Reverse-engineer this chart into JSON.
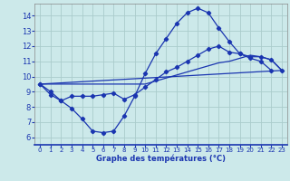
{
  "title": "Graphe des températures (°C)",
  "bg_color": "#cce9ea",
  "grid_color": "#aacccc",
  "line_color": "#1a35b0",
  "xlim": [
    -0.5,
    23.5
  ],
  "ylim": [
    5.5,
    14.8
  ],
  "yticks": [
    6,
    7,
    8,
    9,
    10,
    11,
    12,
    13,
    14
  ],
  "xticks": [
    0,
    1,
    2,
    3,
    4,
    5,
    6,
    7,
    8,
    9,
    10,
    11,
    12,
    13,
    14,
    15,
    16,
    17,
    18,
    19,
    20,
    21,
    22,
    23
  ],
  "curve1_x": [
    0,
    1,
    2,
    3,
    4,
    5,
    6,
    7,
    8,
    9,
    10,
    11,
    12,
    13,
    14,
    15,
    16,
    17,
    18,
    19,
    20,
    21,
    22
  ],
  "curve1_y": [
    9.5,
    9.0,
    8.4,
    7.9,
    7.2,
    6.4,
    6.3,
    6.4,
    7.4,
    8.7,
    10.2,
    11.5,
    12.5,
    13.5,
    14.2,
    14.5,
    14.2,
    13.2,
    12.3,
    11.5,
    11.2,
    11.0,
    10.4
  ],
  "curve2_x": [
    0,
    1,
    2,
    3,
    4,
    5,
    6,
    7,
    8,
    9,
    10,
    11,
    12,
    13,
    14,
    15,
    16,
    17,
    18,
    19,
    20,
    21,
    22,
    23
  ],
  "curve2_y": [
    9.5,
    8.8,
    8.4,
    8.7,
    8.7,
    8.7,
    8.8,
    8.9,
    8.5,
    8.8,
    9.3,
    9.8,
    10.3,
    10.6,
    11.0,
    11.4,
    11.8,
    12.0,
    11.6,
    11.5,
    11.3,
    11.3,
    11.1,
    10.4
  ],
  "curve3_x": [
    0,
    10,
    11,
    12,
    13,
    14,
    15,
    16,
    17,
    18,
    19,
    20,
    21,
    22,
    23
  ],
  "curve3_y": [
    9.5,
    9.5,
    9.7,
    9.9,
    10.1,
    10.3,
    10.5,
    10.7,
    10.9,
    11.0,
    11.2,
    11.4,
    11.3,
    11.1,
    10.4
  ],
  "curve4_x": [
    0,
    23
  ],
  "curve4_y": [
    9.5,
    10.4
  ]
}
